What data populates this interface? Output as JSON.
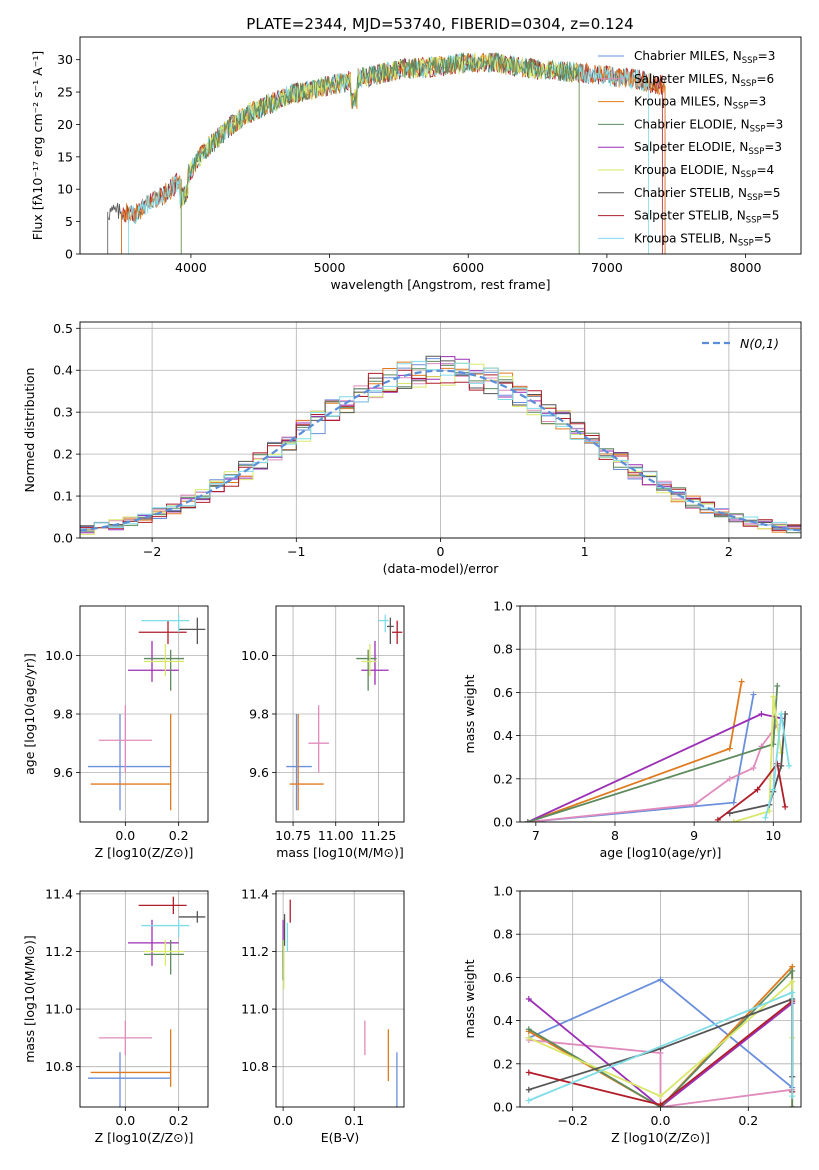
{
  "figure_title": "PLATE=2344, MJD=53740, FIBERID=0304, z=0.124",
  "colors": {
    "cM": "#6a8fdc",
    "sM": "#e08bbd",
    "kM": "#e07b20",
    "cE": "#5e8a5e",
    "sE": "#9b2fb5",
    "kE": "#d9e86a",
    "cS": "#555555",
    "sS": "#b01e2a",
    "kS": "#7fdde8",
    "gauss": "#5b8ed8"
  },
  "chart_data": [
    {
      "id": "spectrum",
      "type": "line",
      "xlabel": "wavelength [Angstrom, rest frame]",
      "ylabel": "Flux [fλ10⁻¹⁷ erg cm⁻² s⁻¹ A⁻¹]",
      "xlim": [
        3200,
        8400
      ],
      "ylim": [
        0,
        33.5
      ],
      "xticks": [
        4000,
        5000,
        6000,
        7000,
        8000
      ],
      "yticks": [
        0,
        5,
        10,
        15,
        20,
        25,
        30
      ],
      "legend": "top-right",
      "series": [
        {
          "name": "Chabrier MILES, N_SSP=3",
          "color": "cM"
        },
        {
          "name": "Salpeter MILES, N_SSP=6",
          "color": "sM"
        },
        {
          "name": "Kroupa MILES, N_SSP=3",
          "color": "kM"
        },
        {
          "name": "Chabrier ELODIE, N_SSP=3",
          "color": "cE"
        },
        {
          "name": "Salpeter ELODIE, N_SSP=3",
          "color": "sE"
        },
        {
          "name": "Kroupa ELODIE, N_SSP=4",
          "color": "kE"
        },
        {
          "name": "Chabrier STELIB, N_SSP=5",
          "color": "cS"
        },
        {
          "name": "Salpeter STELIB, N_SSP=5",
          "color": "sS"
        },
        {
          "name": "Kroupa STELIB, N_SSP=5",
          "color": "kS"
        }
      ],
      "continuum": {
        "x": [
          3400,
          3600,
          3700,
          3800,
          3900,
          4000,
          4100,
          4200,
          4300,
          4400,
          4500,
          4700,
          5000,
          5200,
          5500,
          5800,
          6000,
          6200,
          6500,
          6800,
          7000,
          7200,
          7400
        ],
        "y": [
          6.5,
          6.2,
          8,
          9,
          11,
          13,
          16,
          18,
          20,
          21.5,
          22.5,
          24.5,
          26,
          27,
          28.5,
          29,
          29.5,
          29.5,
          28.5,
          28,
          27.5,
          27,
          26
        ]
      },
      "coverage": [
        {
          "color": "cS",
          "x": [
            3400,
            7420
          ]
        },
        {
          "color": "sS",
          "x": [
            3500,
            7400
          ]
        },
        {
          "color": "kM",
          "x": [
            3500,
            7420
          ]
        },
        {
          "color": "kS",
          "x": [
            3550,
            7300
          ]
        },
        {
          "color": "kE",
          "x": [
            3930,
            6800
          ]
        },
        {
          "color": "cE",
          "x": [
            3930,
            6800
          ]
        }
      ]
    },
    {
      "id": "residuals",
      "type": "step",
      "xlabel": "(data-model)/error",
      "ylabel": "Normed distribution",
      "xlim": [
        -2.5,
        2.5
      ],
      "ylim": [
        0,
        0.515
      ],
      "xticks": [
        -2,
        -1,
        0,
        1,
        2
      ],
      "yticks": [
        0.0,
        0.1,
        0.2,
        0.3,
        0.4,
        0.5
      ],
      "legend": "top-right",
      "gauss_label": "N(0,1)",
      "bin_width": 0.1,
      "bin_start": -2.5
    },
    {
      "id": "age_vs_Z",
      "type": "errorbar",
      "xlabel": "Z [log10(Z/Z⊙)]",
      "ylabel": "age [log10(age/yr)]",
      "xlim": [
        -0.17,
        0.31
      ],
      "ylim": [
        9.43,
        10.17
      ],
      "xticks": [
        0.0,
        0.2
      ],
      "yticks": [
        9.6,
        9.8,
        10.0
      ],
      "points": [
        {
          "c": "cM",
          "x": -0.02,
          "y": 9.62,
          "xe": [
            -0.14,
            0.17
          ],
          "ye": [
            9.47,
            9.8
          ]
        },
        {
          "c": "kM",
          "x": 0.17,
          "y": 9.56,
          "xe": [
            -0.13,
            0.17
          ],
          "ye": [
            9.47,
            9.8
          ]
        },
        {
          "c": "sM",
          "x": 0.0,
          "y": 9.71,
          "xe": [
            -0.1,
            0.1
          ],
          "ye": [
            9.6,
            9.83
          ]
        },
        {
          "c": "sE",
          "x": 0.1,
          "y": 9.95,
          "xe": [
            0.01,
            0.2
          ],
          "ye": [
            9.91,
            10.05
          ]
        },
        {
          "c": "cE",
          "x": 0.17,
          "y": 9.99,
          "xe": [
            0.07,
            0.22
          ],
          "ye": [
            9.88,
            10.02
          ]
        },
        {
          "c": "kE",
          "x": 0.15,
          "y": 9.98,
          "xe": [
            0.07,
            0.22
          ],
          "ye": [
            9.93,
            10.04
          ]
        },
        {
          "c": "sS",
          "x": 0.16,
          "y": 10.08,
          "xe": [
            0.05,
            0.23
          ],
          "ye": [
            10.04,
            10.12
          ]
        },
        {
          "c": "cS",
          "x": 0.27,
          "y": 10.09,
          "xe": [
            0.2,
            0.3
          ],
          "ye": [
            10.04,
            10.13
          ]
        },
        {
          "c": "kS",
          "x": 0.2,
          "y": 10.12,
          "xe": [
            0.06,
            0.24
          ],
          "ye": [
            10.08,
            10.14
          ]
        }
      ]
    },
    {
      "id": "age_vs_mass",
      "type": "errorbar",
      "xlabel": "mass [log10(M/M⊙)]",
      "ylabel": "",
      "xlim": [
        10.65,
        11.4
      ],
      "ylim": [
        9.43,
        10.17
      ],
      "xticks": [
        10.75,
        11.0,
        11.25
      ],
      "yticks": [
        9.6,
        9.8,
        10.0
      ],
      "points": [
        {
          "c": "cM",
          "x": 10.77,
          "y": 9.62,
          "xe": [
            10.71,
            10.86
          ],
          "ye": [
            9.47,
            9.8
          ]
        },
        {
          "c": "kM",
          "x": 10.78,
          "y": 9.56,
          "xe": [
            10.73,
            10.93
          ],
          "ye": [
            9.47,
            9.8
          ]
        },
        {
          "c": "sM",
          "x": 10.9,
          "y": 9.7,
          "xe": [
            10.84,
            10.96
          ],
          "ye": [
            9.6,
            9.83
          ]
        },
        {
          "c": "sE",
          "x": 11.23,
          "y": 9.95,
          "xe": [
            11.15,
            11.31
          ],
          "ye": [
            9.9,
            10.05
          ]
        },
        {
          "c": "cE",
          "x": 11.19,
          "y": 9.99,
          "xe": [
            11.12,
            11.24
          ],
          "ye": [
            9.88,
            10.02
          ]
        },
        {
          "c": "kE",
          "x": 11.2,
          "y": 9.98,
          "xe": [
            11.15,
            11.24
          ],
          "ye": [
            9.93,
            10.04
          ]
        },
        {
          "c": "sS",
          "x": 11.36,
          "y": 10.08,
          "xe": [
            11.33,
            11.39
          ],
          "ye": [
            10.04,
            10.12
          ]
        },
        {
          "c": "cS",
          "x": 11.32,
          "y": 10.1,
          "xe": [
            11.3,
            11.34
          ],
          "ye": [
            10.04,
            10.13
          ]
        },
        {
          "c": "kS",
          "x": 11.29,
          "y": 10.12,
          "xe": [
            11.25,
            11.31
          ],
          "ye": [
            10.08,
            10.14
          ]
        }
      ]
    },
    {
      "id": "mass_weight_vs_age",
      "type": "line",
      "xlabel": "age [log10(age/yr)]",
      "ylabel": "mass weight",
      "xlim": [
        6.8,
        10.35
      ],
      "ylim": [
        0,
        1
      ],
      "xticks": [
        7,
        8,
        9,
        10
      ],
      "yticks": [
        0.0,
        0.2,
        0.4,
        0.6,
        0.8,
        1.0
      ],
      "series": [
        {
          "c": "cM",
          "x": [
            6.9,
            9.5,
            9.75
          ],
          "y": [
            0.0,
            0.09,
            0.59
          ]
        },
        {
          "c": "kM",
          "x": [
            6.9,
            9.45,
            9.6
          ],
          "y": [
            0.0,
            0.34,
            0.65
          ]
        },
        {
          "c": "sM",
          "x": [
            6.9,
            9.0,
            9.45,
            9.75,
            9.85,
            10.05
          ],
          "y": [
            0.0,
            0.08,
            0.2,
            0.25,
            0.35,
            0.45
          ]
        },
        {
          "c": "sE",
          "x": [
            6.9,
            9.85,
            10.1
          ],
          "y": [
            0.0,
            0.5,
            0.48
          ]
        },
        {
          "c": "cE",
          "x": [
            6.9,
            10.0,
            10.05
          ],
          "y": [
            0.0,
            0.36,
            0.63
          ]
        },
        {
          "c": "kE",
          "x": [
            9.5,
            9.95,
            10.0,
            10.1
          ],
          "y": [
            0.0,
            0.05,
            0.58,
            0.32
          ]
        },
        {
          "c": "cS",
          "x": [
            9.45,
            9.95,
            10.0,
            10.1,
            10.15
          ],
          "y": [
            0.04,
            0.08,
            0.14,
            0.26,
            0.5
          ]
        },
        {
          "c": "sS",
          "x": [
            9.3,
            9.8,
            10.05,
            10.15
          ],
          "y": [
            0.01,
            0.15,
            0.27,
            0.07
          ]
        },
        {
          "c": "kS",
          "x": [
            9.9,
            10.0,
            10.1,
            10.2
          ],
          "y": [
            0.02,
            0.15,
            0.5,
            0.26
          ]
        }
      ]
    },
    {
      "id": "mass_vs_Z",
      "type": "errorbar",
      "xlabel": "Z [log10(Z/Z⊙)]",
      "ylabel": "mass [log10(M/M⊙)]",
      "xlim": [
        -0.17,
        0.31
      ],
      "ylim": [
        10.66,
        11.41
      ],
      "xticks": [
        0.0,
        0.2
      ],
      "yticks": [
        10.8,
        11.0,
        11.2,
        11.4
      ],
      "points": [
        {
          "c": "cM",
          "x": -0.02,
          "y": 10.76,
          "xe": [
            -0.14,
            0.17
          ],
          "ye": [
            10.66,
            10.85
          ]
        },
        {
          "c": "kM",
          "x": 0.17,
          "y": 10.78,
          "xe": [
            -0.13,
            0.17
          ],
          "ye": [
            10.73,
            10.93
          ]
        },
        {
          "c": "sM",
          "x": 0.0,
          "y": 10.9,
          "xe": [
            -0.1,
            0.1
          ],
          "ye": [
            10.84,
            10.96
          ]
        },
        {
          "c": "sE",
          "x": 0.1,
          "y": 11.23,
          "xe": [
            0.01,
            0.2
          ],
          "ye": [
            11.15,
            11.31
          ]
        },
        {
          "c": "cE",
          "x": 0.17,
          "y": 11.19,
          "xe": [
            0.07,
            0.22
          ],
          "ye": [
            11.12,
            11.24
          ]
        },
        {
          "c": "kE",
          "x": 0.15,
          "y": 11.2,
          "xe": [
            0.07,
            0.22
          ],
          "ye": [
            11.15,
            11.24
          ]
        },
        {
          "c": "sS",
          "x": 0.18,
          "y": 11.36,
          "xe": [
            0.05,
            0.23
          ],
          "ye": [
            11.33,
            11.39
          ]
        },
        {
          "c": "cS",
          "x": 0.27,
          "y": 11.32,
          "xe": [
            0.2,
            0.3
          ],
          "ye": [
            11.3,
            11.34
          ]
        },
        {
          "c": "kS",
          "x": 0.2,
          "y": 11.29,
          "xe": [
            0.06,
            0.24
          ],
          "ye": [
            11.25,
            11.31
          ]
        }
      ]
    },
    {
      "id": "mass_vs_ebv",
      "type": "errorbar",
      "xlabel": "E(B-V)",
      "ylabel": "",
      "xlim": [
        -0.01,
        0.17
      ],
      "ylim": [
        10.66,
        11.41
      ],
      "xticks": [
        0.0,
        0.1
      ],
      "yticks": [
        10.8,
        11.0,
        11.2,
        11.4
      ],
      "points": [
        {
          "c": "cM",
          "x": 0.16,
          "y": 10.76,
          "xe": [
            0.16,
            0.16
          ],
          "ye": [
            10.66,
            10.85
          ]
        },
        {
          "c": "kM",
          "x": 0.148,
          "y": 10.8,
          "xe": [
            0.148,
            0.148
          ],
          "ye": [
            10.75,
            10.93
          ]
        },
        {
          "c": "sM",
          "x": 0.115,
          "y": 10.9,
          "xe": [
            0.115,
            0.115
          ],
          "ye": [
            10.84,
            10.96
          ]
        },
        {
          "c": "sE",
          "x": 0.0,
          "y": 11.23,
          "xe": [
            0.0,
            0.0
          ],
          "ye": [
            11.15,
            11.31
          ]
        },
        {
          "c": "cE",
          "x": 0.0,
          "y": 11.19,
          "xe": [
            0.0,
            0.0
          ],
          "ye": [
            11.1,
            11.24
          ]
        },
        {
          "c": "kE",
          "x": 0.001,
          "y": 11.15,
          "xe": [
            0.001,
            0.001
          ],
          "ye": [
            11.07,
            11.24
          ]
        },
        {
          "c": "sS",
          "x": 0.01,
          "y": 11.35,
          "xe": [
            0.01,
            0.01
          ],
          "ye": [
            11.3,
            11.38
          ]
        },
        {
          "c": "cS",
          "x": 0.002,
          "y": 11.28,
          "xe": [
            0.002,
            0.002
          ],
          "ye": [
            11.22,
            11.33
          ]
        },
        {
          "c": "kS",
          "x": 0.006,
          "y": 11.25,
          "xe": [
            0.006,
            0.006
          ],
          "ye": [
            11.2,
            11.3
          ]
        }
      ]
    },
    {
      "id": "mass_weight_vs_Z",
      "type": "line",
      "xlabel": "Z [log10(Z/Z⊙)]",
      "ylabel": "mass weight",
      "xlim": [
        -0.32,
        0.32
      ],
      "ylim": [
        0,
        1
      ],
      "xticks": [
        -0.2,
        0.0,
        0.2
      ],
      "yticks": [
        0.0,
        0.2,
        0.4,
        0.6,
        0.8,
        1.0
      ],
      "series": [
        {
          "c": "cM",
          "x": [
            -0.3,
            0.0,
            0.3
          ],
          "y": [
            0.32,
            0.59,
            0.09
          ]
        },
        {
          "c": "kM",
          "x": [
            -0.3,
            0.0,
            0.3,
            0.3
          ],
          "y": [
            0.35,
            0.0,
            0.65,
            0.0
          ]
        },
        {
          "c": "sM",
          "x": [
            -0.3,
            0.0,
            0.0,
            0.3,
            0.3
          ],
          "y": [
            0.31,
            0.25,
            0.0,
            0.08,
            0.49
          ]
        },
        {
          "c": "sE",
          "x": [
            -0.3,
            0.0,
            0.3
          ],
          "y": [
            0.5,
            0.0,
            0.48
          ]
        },
        {
          "c": "cE",
          "x": [
            -0.3,
            0.0,
            0.3,
            0.3
          ],
          "y": [
            0.36,
            0.0,
            0.63,
            0.0
          ]
        },
        {
          "c": "kE",
          "x": [
            -0.3,
            0.0,
            0.3,
            0.3
          ],
          "y": [
            0.32,
            0.05,
            0.58,
            0.32
          ]
        },
        {
          "c": "cS",
          "x": [
            -0.3,
            0.0,
            0.3,
            0.3
          ],
          "y": [
            0.08,
            0.27,
            0.5,
            0.14
          ]
        },
        {
          "c": "sS",
          "x": [
            -0.3,
            0.0,
            0.3,
            0.3
          ],
          "y": [
            0.16,
            0.01,
            0.49,
            0.07
          ]
        },
        {
          "c": "kS",
          "x": [
            -0.3,
            0.3,
            0.3
          ],
          "y": [
            0.03,
            0.53,
            0.05
          ]
        }
      ]
    }
  ]
}
